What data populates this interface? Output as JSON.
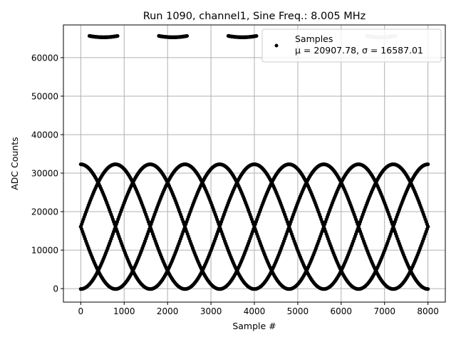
{
  "chart_data": {
    "type": "scatter",
    "title": "Run 1090, channel1, Sine Freq.: 8.005 MHz",
    "xlabel": "Sample #",
    "ylabel": "ADC Counts",
    "xlim": [
      -400,
      8400
    ],
    "ylim": [
      -3500,
      68500
    ],
    "xticks": [
      0,
      1000,
      2000,
      3000,
      4000,
      5000,
      6000,
      7000,
      8000
    ],
    "xtick_labels": [
      "0",
      "1000",
      "2000",
      "3000",
      "4000",
      "5000",
      "6000",
      "7000",
      "8000"
    ],
    "yticks": [
      0,
      10000,
      20000,
      30000,
      40000,
      50000,
      60000
    ],
    "ytick_labels": [
      "0",
      "10000",
      "20000",
      "30000",
      "40000",
      "50000",
      "60000"
    ],
    "grid": true,
    "legend": {
      "placement": "top-right",
      "entries": [
        "Samples",
        "μ = 20907.78, σ = 16587.01"
      ]
    },
    "series": [
      {
        "name": "Samples",
        "color": "#000000",
        "marker": "circle",
        "signal": {
          "amplitude": 16200,
          "offset": 16100,
          "period_samples": 3200,
          "phases": [
            0,
            800,
            1600,
            2400
          ],
          "n_samples": 8000,
          "saturated_wrap_value": 65300,
          "saturated_rows": [
            {
              "tone": "dark",
              "x_start": 200,
              "x_end": 850
            },
            {
              "tone": "dark",
              "x_start": 1800,
              "x_end": 2450
            },
            {
              "tone": "dark",
              "x_start": 3400,
              "x_end": 4050
            },
            {
              "tone": "light",
              "x_start": 6600,
              "x_end": 7250
            }
          ]
        }
      }
    ],
    "colors": {
      "points": "#000000",
      "wrap_light": "#c8c8c8",
      "grid": "#b0b0b0"
    }
  }
}
